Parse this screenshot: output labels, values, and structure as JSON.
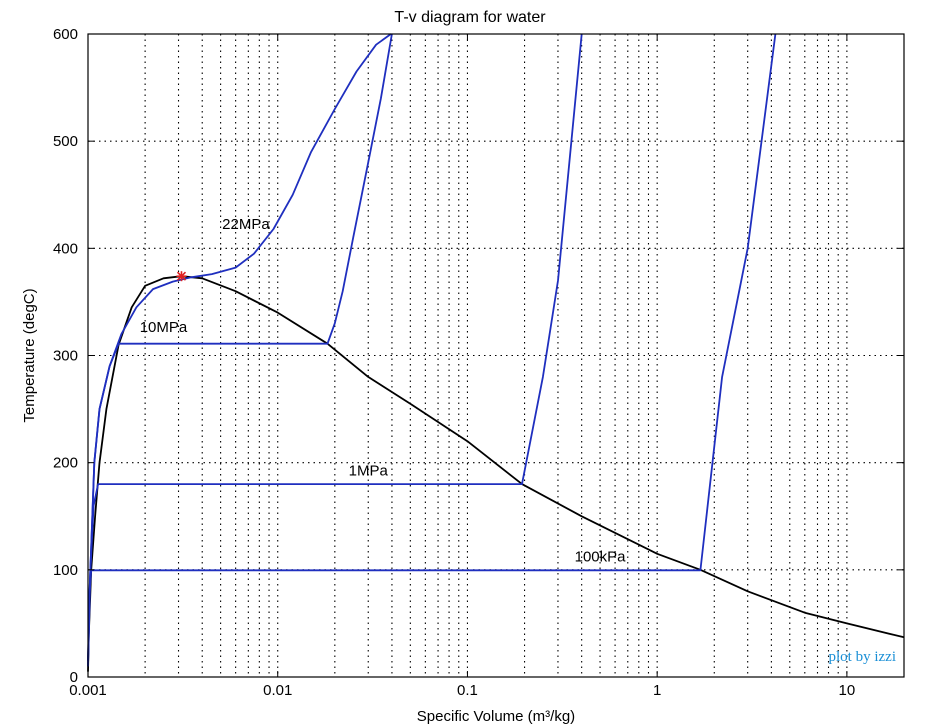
{
  "chart_data": {
    "type": "line",
    "title": "T-v diagram for water",
    "xlabel": "Specific Volume (m³/kg)",
    "ylabel": "Temperature (degC)",
    "x_scale": "log",
    "xlim": [
      0.001,
      20
    ],
    "ylim": [
      0,
      600
    ],
    "x_ticks": [
      {
        "value": 0.001,
        "label": "0.001"
      },
      {
        "value": 0.01,
        "label": "0.01"
      },
      {
        "value": 0.1,
        "label": "0.1"
      },
      {
        "value": 1,
        "label": "1"
      },
      {
        "value": 10,
        "label": "10"
      }
    ],
    "y_ticks": [
      {
        "value": 0,
        "label": "0"
      },
      {
        "value": 100,
        "label": "100"
      },
      {
        "value": 200,
        "label": "200"
      },
      {
        "value": 300,
        "label": "300"
      },
      {
        "value": 400,
        "label": "400"
      },
      {
        "value": 500,
        "label": "500"
      },
      {
        "value": 600,
        "label": "600"
      }
    ],
    "grid": true,
    "series": [
      {
        "name": "saturation dome",
        "color": "#000000",
        "x": [
          0.001,
          0.00101,
          0.00104,
          0.00109,
          0.00115,
          0.00125,
          0.00145,
          0.0017,
          0.002,
          0.0025,
          0.00311,
          0.004,
          0.006,
          0.01,
          0.0183,
          0.03,
          0.05,
          0.1,
          0.194,
          0.4,
          1.0,
          1.69,
          3.0,
          6.0,
          10,
          20
        ],
        "y": [
          5,
          40,
          100,
          150,
          200,
          250,
          310,
          345,
          365,
          372,
          374,
          372,
          360,
          340,
          311,
          280,
          255,
          220,
          180,
          150,
          115,
          100,
          80,
          60,
          50,
          37
        ]
      },
      {
        "name": "22MPa",
        "color": "#1f2fbf",
        "x": [
          0.001,
          0.00102,
          0.00108,
          0.00115,
          0.0013,
          0.0015,
          0.0018,
          0.0022,
          0.0028,
          0.0035,
          0.0045,
          0.006,
          0.0075,
          0.0095,
          0.012,
          0.015,
          0.02,
          0.026,
          0.033,
          0.0395
        ],
        "y": [
          15,
          80,
          200,
          250,
          290,
          320,
          345,
          362,
          369,
          373,
          376,
          382,
          395,
          418,
          450,
          490,
          530,
          565,
          590,
          600
        ]
      },
      {
        "name": "10MPa",
        "color": "#1f2fbf",
        "x": [
          0.001,
          0.00102,
          0.00108,
          0.00115,
          0.0013,
          0.00145,
          0.0183,
          0.02,
          0.022,
          0.025,
          0.03,
          0.035,
          0.04
        ],
        "y": [
          15,
          80,
          200,
          250,
          290,
          311,
          311,
          330,
          360,
          410,
          480,
          540,
          600
        ]
      },
      {
        "name": "1MPa",
        "color": "#1f2fbf",
        "x": [
          0.001,
          0.00103,
          0.00107,
          0.00113,
          0.194,
          0.25,
          0.3,
          0.4
        ],
        "y": [
          10,
          100,
          160,
          180,
          180,
          280,
          370,
          600
        ]
      },
      {
        "name": "100kPa",
        "color": "#1f2fbf",
        "x": [
          0.001,
          0.00102,
          0.00104,
          1.69,
          2.2,
          3.0,
          4.2
        ],
        "y": [
          10,
          80,
          99.6,
          99.6,
          280,
          400,
          600
        ]
      }
    ],
    "critical_point": {
      "x": 0.00311,
      "y": 374,
      "color": "#e02020"
    },
    "annotations": [
      {
        "text": "22MPa",
        "x": 0.0068,
        "y": 418
      },
      {
        "text": "10MPa",
        "x": 0.0025,
        "y": 322
      },
      {
        "text": "1MPa",
        "x": 0.03,
        "y": 188
      },
      {
        "text": "100kPa",
        "x": 0.5,
        "y": 108
      }
    ],
    "credit": "plot by izzi"
  }
}
